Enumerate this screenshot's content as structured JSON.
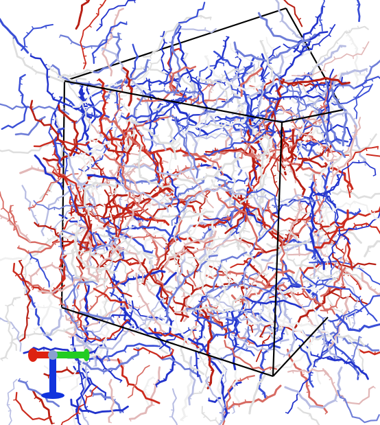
{
  "scene": {
    "background": "#ffffff",
    "box_color": "#000000",
    "palette": [
      "#2233cc",
      "#3a4fd6",
      "#6f7ed8",
      "#b8bde3",
      "#dedede",
      "#f0f0f0",
      "#e2b8b8",
      "#d76a62",
      "#cc2b1e",
      "#b81f14"
    ],
    "axes": {
      "x_color": "#dd2211",
      "y_color": "#22cc22",
      "z_color": "#1133dd"
    }
  }
}
